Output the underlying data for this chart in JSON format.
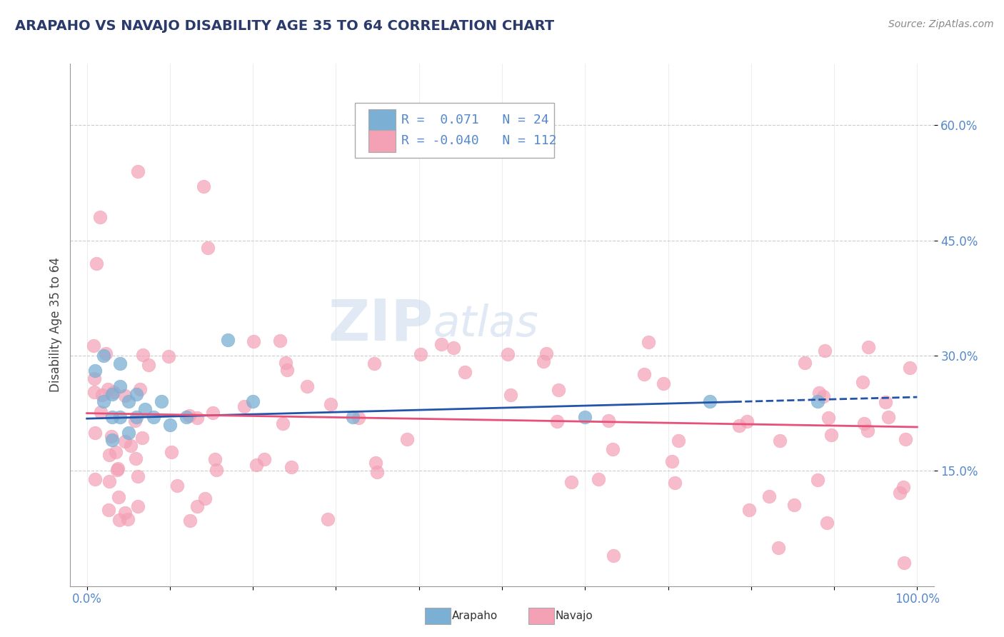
{
  "title": "ARAPAHO VS NAVAJO DISABILITY AGE 35 TO 64 CORRELATION CHART",
  "source_text": "Source: ZipAtlas.com",
  "ylabel": "Disability Age 35 to 64",
  "xlim": [
    -0.02,
    1.02
  ],
  "ylim": [
    0.0,
    0.68
  ],
  "yticks": [
    0.15,
    0.3,
    0.45,
    0.6
  ],
  "yticklabels": [
    "15.0%",
    "30.0%",
    "45.0%",
    "60.0%"
  ],
  "xtick_positions": [
    0.0,
    0.1,
    0.2,
    0.3,
    0.4,
    0.5,
    0.6,
    0.7,
    0.8,
    0.9,
    1.0
  ],
  "xticklabels": [
    "0.0%",
    "",
    "",
    "",
    "",
    "",
    "",
    "",
    "",
    "",
    "100.0%"
  ],
  "arapaho_color": "#7bafd4",
  "navajo_color": "#f4a0b5",
  "arapaho_line_color": "#2255aa",
  "navajo_line_color": "#e8507a",
  "arapaho_R": 0.071,
  "arapaho_N": 24,
  "navajo_R": -0.04,
  "navajo_N": 112,
  "watermark_zip": "ZIP",
  "watermark_atlas": "atlas",
  "background_color": "#ffffff",
  "grid_color": "#cccccc",
  "arapaho_intercept": 0.218,
  "arapaho_slope": 0.028,
  "navajo_intercept": 0.225,
  "navajo_slope": -0.018,
  "tick_color": "#5588cc",
  "title_color": "#2a3a6a"
}
